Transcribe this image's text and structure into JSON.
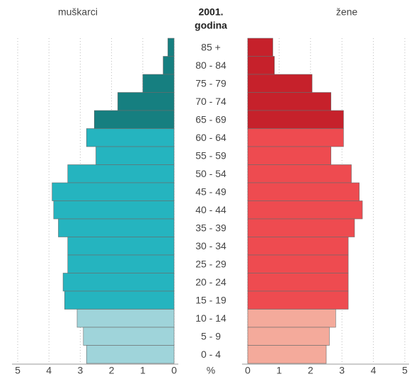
{
  "chart_data": {
    "type": "pyramid",
    "title": "2001.",
    "subtitle": "godina",
    "unit_label": "%",
    "categories": [
      "85 +",
      "80 - 84",
      "75 - 79",
      "70 - 74",
      "65 - 69",
      "60 - 64",
      "55 - 59",
      "50 - 54",
      "45 - 49",
      "40 - 44",
      "35 - 39",
      "30 - 34",
      "25 - 29",
      "20 - 24",
      "15 - 19",
      "10 - 14",
      "5 - 9",
      "0 - 4"
    ],
    "series": [
      {
        "name": "muškarci",
        "side": "left",
        "colors": [
          "#167f80",
          "#167f80",
          "#167f80",
          "#167f80",
          "#167f80",
          "#25b4bf",
          "#25b4bf",
          "#25b4bf",
          "#25b4bf",
          "#25b4bf",
          "#25b4bf",
          "#25b4bf",
          "#25b4bf",
          "#25b4bf",
          "#25b4bf",
          "#9fd4da",
          "#9fd4da",
          "#9fd4da"
        ],
        "values": [
          0.2,
          0.35,
          1.0,
          1.8,
          2.55,
          2.8,
          2.5,
          3.4,
          3.9,
          3.85,
          3.7,
          3.4,
          3.4,
          3.55,
          3.5,
          3.1,
          2.9,
          2.8
        ]
      },
      {
        "name": "žene",
        "side": "right",
        "colors": [
          "#c6212b",
          "#c6212b",
          "#c6212b",
          "#c6212b",
          "#c6212b",
          "#ee4b50",
          "#ee4b50",
          "#ee4b50",
          "#ee4b50",
          "#ee4b50",
          "#ee4b50",
          "#ee4b50",
          "#ee4b50",
          "#ee4b50",
          "#ee4b50",
          "#f4aa9b",
          "#f4aa9b",
          "#f4aa9b"
        ],
        "values": [
          0.8,
          0.85,
          2.05,
          2.65,
          3.05,
          3.05,
          2.65,
          3.3,
          3.55,
          3.65,
          3.4,
          3.2,
          3.2,
          3.2,
          3.2,
          2.8,
          2.6,
          2.5
        ]
      }
    ],
    "xlim": [
      0,
      5
    ],
    "xticks": [
      0,
      1,
      2,
      3,
      4,
      5
    ],
    "grid": true
  }
}
